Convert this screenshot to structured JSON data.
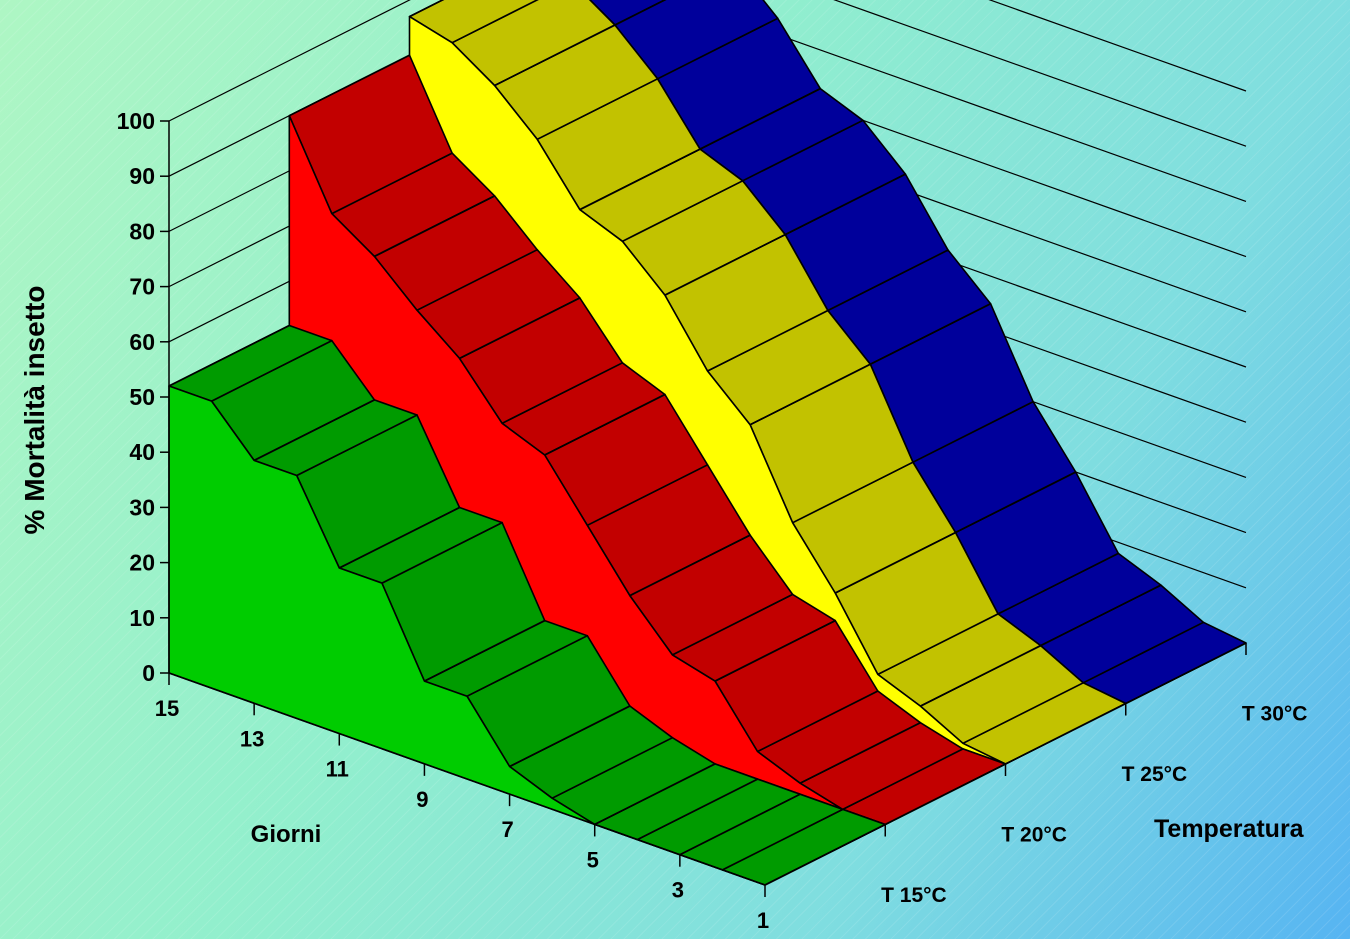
{
  "chart_data": {
    "type": "area",
    "chart_subtype": "3d-area",
    "ylabel": "% Mortalità insetto",
    "xlabel": "Giorni",
    "zlabel": "Temperatura",
    "x": [
      1,
      2,
      3,
      4,
      5,
      6,
      7,
      8,
      9,
      10,
      11,
      12,
      13,
      14,
      15
    ],
    "x_tick_labels": [
      "1",
      "3",
      "5",
      "7",
      "9",
      "11",
      "13",
      "15"
    ],
    "ylim": [
      0,
      100
    ],
    "y_ticks": [
      "0",
      "10",
      "20",
      "30",
      "40",
      "50",
      "60",
      "70",
      "80",
      "90",
      "100"
    ],
    "grid": true,
    "series": [
      {
        "name": "T 15°C",
        "color": "#00cc00",
        "values": [
          0,
          0,
          0,
          0,
          0,
          2,
          5,
          15,
          15,
          30,
          30,
          44,
          44,
          52,
          52
        ]
      },
      {
        "name": "T 20°C",
        "color": "#ff0000",
        "values": [
          0,
          0,
          2,
          5,
          15,
          17,
          25,
          35,
          45,
          48,
          57,
          63,
          70,
          75,
          90
        ]
      },
      {
        "name": "T 25°C",
        "color": "#ffff00",
        "values": [
          0,
          1,
          5,
          8,
          20,
          30,
          45,
          52,
          63,
          70,
          73,
          83,
          90,
          95,
          97
        ]
      },
      {
        "name": "T 30°C",
        "color": "#0000cc",
        "values": [
          0,
          1,
          5,
          8,
          20,
          30,
          45,
          52,
          63,
          70,
          73,
          83,
          90,
          95,
          97
        ]
      }
    ]
  }
}
